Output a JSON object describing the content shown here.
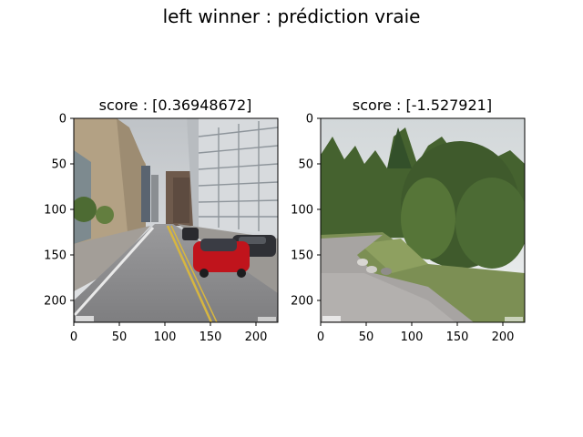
{
  "figure": {
    "suptitle": "left winner : prédiction vraie"
  },
  "chart_data": [
    {
      "type": "image",
      "title": "score : [0.36948672]",
      "scene": "city street with office buildings and a red car",
      "xticks": [
        0,
        50,
        100,
        150,
        200
      ],
      "yticks": [
        0,
        50,
        100,
        150,
        200
      ],
      "xlim": [
        0,
        224
      ],
      "ylim": [
        224,
        0
      ],
      "colors": {
        "sky": "#c9cdd1",
        "road": "#8d8d8f",
        "car": "#c0141c",
        "building": "#b3a184",
        "glass": "#d7dadd"
      }
    },
    {
      "type": "image",
      "title": "score : [-1.527921]",
      "scene": "park path surrounded by trees",
      "xticks": [
        0,
        50,
        100,
        150,
        200
      ],
      "yticks": [
        0,
        50,
        100,
        150,
        200
      ],
      "xlim": [
        0,
        224
      ],
      "ylim": [
        224,
        0
      ],
      "colors": {
        "sky": "#dfe3e4",
        "trees": "#3f5a2c",
        "grass": "#7c8f54",
        "path": "#a7a4a2"
      }
    }
  ]
}
